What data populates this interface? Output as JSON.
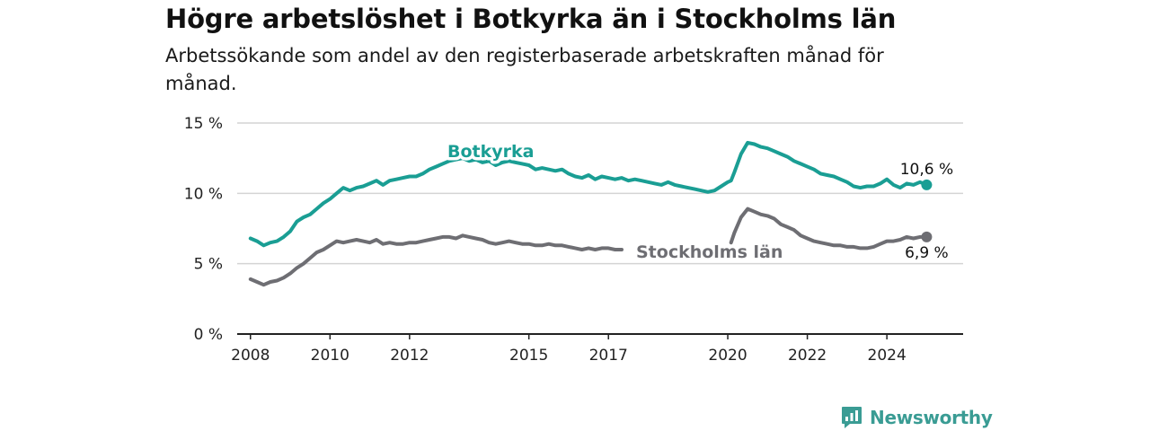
{
  "title": "Högre arbetslöshet i Botkyrka än i Stockholms län",
  "subtitle": "Arbetssökande som andel av den registerbaserade arbetskraften månad för månad.",
  "brand": {
    "name": "Newsworthy",
    "color": "#3a9c94",
    "icon": "newsworthy-logo-icon"
  },
  "colors": {
    "botkyrka": "#1a9e94",
    "stockholm": "#6e6e73",
    "grid": "#d4d4d4",
    "axis": "#222222"
  },
  "chart_data": {
    "type": "line",
    "title": "Högre arbetslöshet i Botkyrka än i Stockholms län",
    "ylabel": "",
    "xlabel": "",
    "ylim": [
      0,
      15
    ],
    "xlim": [
      "2007-09",
      "2025-12"
    ],
    "grid": "horizontal",
    "legend": "inline labels",
    "y_ticks": [
      {
        "value": 0,
        "label": "0 %"
      },
      {
        "value": 5,
        "label": "5 %"
      },
      {
        "value": 10,
        "label": "10 %"
      },
      {
        "value": 15,
        "label": "15 %"
      }
    ],
    "x_ticks": [
      {
        "value": "2008-01",
        "label": "2008"
      },
      {
        "value": "2010-01",
        "label": "2010"
      },
      {
        "value": "2012-01",
        "label": "2012"
      },
      {
        "value": "2015-01",
        "label": "2015"
      },
      {
        "value": "2017-01",
        "label": "2017"
      },
      {
        "value": "2020-01",
        "label": "2020"
      },
      {
        "value": "2022-01",
        "label": "2022"
      },
      {
        "value": "2024-01",
        "label": "2024"
      }
    ],
    "series": [
      {
        "name": "Botkyrka",
        "color": "#1a9e94",
        "end_label": "10,6 %",
        "points": [
          [
            "2008-01",
            6.8
          ],
          [
            "2008-03",
            6.6
          ],
          [
            "2008-05",
            6.3
          ],
          [
            "2008-07",
            6.5
          ],
          [
            "2008-09",
            6.6
          ],
          [
            "2008-11",
            6.9
          ],
          [
            "2009-01",
            7.3
          ],
          [
            "2009-03",
            8.0
          ],
          [
            "2009-05",
            8.3
          ],
          [
            "2009-07",
            8.5
          ],
          [
            "2009-09",
            8.9
          ],
          [
            "2009-11",
            9.3
          ],
          [
            "2010-01",
            9.6
          ],
          [
            "2010-03",
            10.0
          ],
          [
            "2010-05",
            10.4
          ],
          [
            "2010-07",
            10.2
          ],
          [
            "2010-09",
            10.4
          ],
          [
            "2010-11",
            10.5
          ],
          [
            "2011-01",
            10.7
          ],
          [
            "2011-03",
            10.9
          ],
          [
            "2011-05",
            10.6
          ],
          [
            "2011-07",
            10.9
          ],
          [
            "2011-09",
            11.0
          ],
          [
            "2011-11",
            11.1
          ],
          [
            "2012-01",
            11.2
          ],
          [
            "2012-03",
            11.2
          ],
          [
            "2012-05",
            11.4
          ],
          [
            "2012-07",
            11.7
          ],
          [
            "2012-09",
            11.9
          ],
          [
            "2012-11",
            12.1
          ],
          [
            "2013-01",
            12.3
          ],
          [
            "2013-03",
            12.4
          ],
          [
            "2013-05",
            12.5
          ],
          [
            "2013-07",
            12.3
          ],
          [
            "2013-09",
            12.4
          ],
          [
            "2013-11",
            12.2
          ],
          [
            "2014-01",
            12.3
          ],
          [
            "2014-03",
            12.0
          ],
          [
            "2014-05",
            12.2
          ],
          [
            "2014-07",
            12.3
          ],
          [
            "2014-09",
            12.2
          ],
          [
            "2014-11",
            12.1
          ],
          [
            "2015-01",
            12.0
          ],
          [
            "2015-03",
            11.7
          ],
          [
            "2015-05",
            11.8
          ],
          [
            "2015-07",
            11.7
          ],
          [
            "2015-09",
            11.6
          ],
          [
            "2015-11",
            11.7
          ],
          [
            "2016-01",
            11.4
          ],
          [
            "2016-03",
            11.2
          ],
          [
            "2016-05",
            11.1
          ],
          [
            "2016-07",
            11.3
          ],
          [
            "2016-09",
            11.0
          ],
          [
            "2016-11",
            11.2
          ],
          [
            "2017-01",
            11.1
          ],
          [
            "2017-03",
            11.0
          ],
          [
            "2017-05",
            11.1
          ],
          [
            "2017-07",
            10.9
          ],
          [
            "2017-09",
            11.0
          ],
          [
            "2017-11",
            10.9
          ],
          [
            "2018-01",
            10.8
          ],
          [
            "2018-03",
            10.7
          ],
          [
            "2018-05",
            10.6
          ],
          [
            "2018-07",
            10.8
          ],
          [
            "2018-09",
            10.6
          ],
          [
            "2018-11",
            10.5
          ],
          [
            "2019-01",
            10.4
          ],
          [
            "2019-03",
            10.3
          ],
          [
            "2019-05",
            10.2
          ],
          [
            "2019-07",
            10.1
          ],
          [
            "2019-09",
            10.2
          ],
          [
            "2019-11",
            10.5
          ],
          [
            "2020-01",
            10.8
          ],
          [
            "2020-02",
            10.9
          ],
          [
            "2020-03",
            11.5
          ],
          [
            "2020-05",
            12.8
          ],
          [
            "2020-07",
            13.6
          ],
          [
            "2020-09",
            13.5
          ],
          [
            "2020-11",
            13.3
          ],
          [
            "2021-01",
            13.2
          ],
          [
            "2021-03",
            13.0
          ],
          [
            "2021-05",
            12.8
          ],
          [
            "2021-07",
            12.6
          ],
          [
            "2021-09",
            12.3
          ],
          [
            "2021-11",
            12.1
          ],
          [
            "2022-01",
            11.9
          ],
          [
            "2022-03",
            11.7
          ],
          [
            "2022-05",
            11.4
          ],
          [
            "2022-07",
            11.3
          ],
          [
            "2022-09",
            11.2
          ],
          [
            "2022-11",
            11.0
          ],
          [
            "2023-01",
            10.8
          ],
          [
            "2023-03",
            10.5
          ],
          [
            "2023-05",
            10.4
          ],
          [
            "2023-07",
            10.5
          ],
          [
            "2023-09",
            10.5
          ],
          [
            "2023-11",
            10.7
          ],
          [
            "2024-01",
            11.0
          ],
          [
            "2024-03",
            10.6
          ],
          [
            "2024-05",
            10.4
          ],
          [
            "2024-07",
            10.7
          ],
          [
            "2024-09",
            10.6
          ],
          [
            "2024-11",
            10.8
          ],
          [
            "2025-01",
            10.6
          ]
        ]
      },
      {
        "name": "Stockholms län",
        "color": "#6e6e73",
        "end_label": "6,9 %",
        "points": [
          [
            "2008-01",
            3.9
          ],
          [
            "2008-03",
            3.7
          ],
          [
            "2008-05",
            3.5
          ],
          [
            "2008-07",
            3.7
          ],
          [
            "2008-09",
            3.8
          ],
          [
            "2008-11",
            4.0
          ],
          [
            "2009-01",
            4.3
          ],
          [
            "2009-03",
            4.7
          ],
          [
            "2009-05",
            5.0
          ],
          [
            "2009-07",
            5.4
          ],
          [
            "2009-09",
            5.8
          ],
          [
            "2009-11",
            6.0
          ],
          [
            "2010-01",
            6.3
          ],
          [
            "2010-03",
            6.6
          ],
          [
            "2010-05",
            6.5
          ],
          [
            "2010-07",
            6.6
          ],
          [
            "2010-09",
            6.7
          ],
          [
            "2010-11",
            6.6
          ],
          [
            "2011-01",
            6.5
          ],
          [
            "2011-03",
            6.7
          ],
          [
            "2011-05",
            6.4
          ],
          [
            "2011-07",
            6.5
          ],
          [
            "2011-09",
            6.4
          ],
          [
            "2011-11",
            6.4
          ],
          [
            "2012-01",
            6.5
          ],
          [
            "2012-03",
            6.5
          ],
          [
            "2012-05",
            6.6
          ],
          [
            "2012-07",
            6.7
          ],
          [
            "2012-09",
            6.8
          ],
          [
            "2012-11",
            6.9
          ],
          [
            "2013-01",
            6.9
          ],
          [
            "2013-03",
            6.8
          ],
          [
            "2013-05",
            7.0
          ],
          [
            "2013-07",
            6.9
          ],
          [
            "2013-09",
            6.8
          ],
          [
            "2013-11",
            6.7
          ],
          [
            "2014-01",
            6.5
          ],
          [
            "2014-03",
            6.4
          ],
          [
            "2014-05",
            6.5
          ],
          [
            "2014-07",
            6.6
          ],
          [
            "2014-09",
            6.5
          ],
          [
            "2014-11",
            6.4
          ],
          [
            "2015-01",
            6.4
          ],
          [
            "2015-03",
            6.3
          ],
          [
            "2015-05",
            6.3
          ],
          [
            "2015-07",
            6.4
          ],
          [
            "2015-09",
            6.3
          ],
          [
            "2015-11",
            6.3
          ],
          [
            "2016-01",
            6.2
          ],
          [
            "2016-03",
            6.1
          ],
          [
            "2016-05",
            6.0
          ],
          [
            "2016-07",
            6.1
          ],
          [
            "2016-09",
            6.0
          ],
          [
            "2016-11",
            6.1
          ],
          [
            "2017-01",
            6.1
          ],
          [
            "2017-03",
            6.0
          ],
          [
            "2017-05",
            6.0
          ]
        ],
        "points_late": [
          [
            "2020-02",
            6.5
          ],
          [
            "2020-03",
            7.2
          ],
          [
            "2020-05",
            8.3
          ],
          [
            "2020-07",
            8.9
          ],
          [
            "2020-09",
            8.7
          ],
          [
            "2020-11",
            8.5
          ],
          [
            "2021-01",
            8.4
          ],
          [
            "2021-03",
            8.2
          ],
          [
            "2021-05",
            7.8
          ],
          [
            "2021-07",
            7.6
          ],
          [
            "2021-09",
            7.4
          ],
          [
            "2021-11",
            7.0
          ],
          [
            "2022-01",
            6.8
          ],
          [
            "2022-03",
            6.6
          ],
          [
            "2022-05",
            6.5
          ],
          [
            "2022-07",
            6.4
          ],
          [
            "2022-09",
            6.3
          ],
          [
            "2022-11",
            6.3
          ],
          [
            "2023-01",
            6.2
          ],
          [
            "2023-03",
            6.2
          ],
          [
            "2023-05",
            6.1
          ],
          [
            "2023-07",
            6.1
          ],
          [
            "2023-09",
            6.2
          ],
          [
            "2023-11",
            6.4
          ],
          [
            "2024-01",
            6.6
          ],
          [
            "2024-03",
            6.6
          ],
          [
            "2024-05",
            6.7
          ],
          [
            "2024-07",
            6.9
          ],
          [
            "2024-09",
            6.8
          ],
          [
            "2024-11",
            6.9
          ],
          [
            "2025-01",
            6.9
          ]
        ]
      }
    ]
  }
}
